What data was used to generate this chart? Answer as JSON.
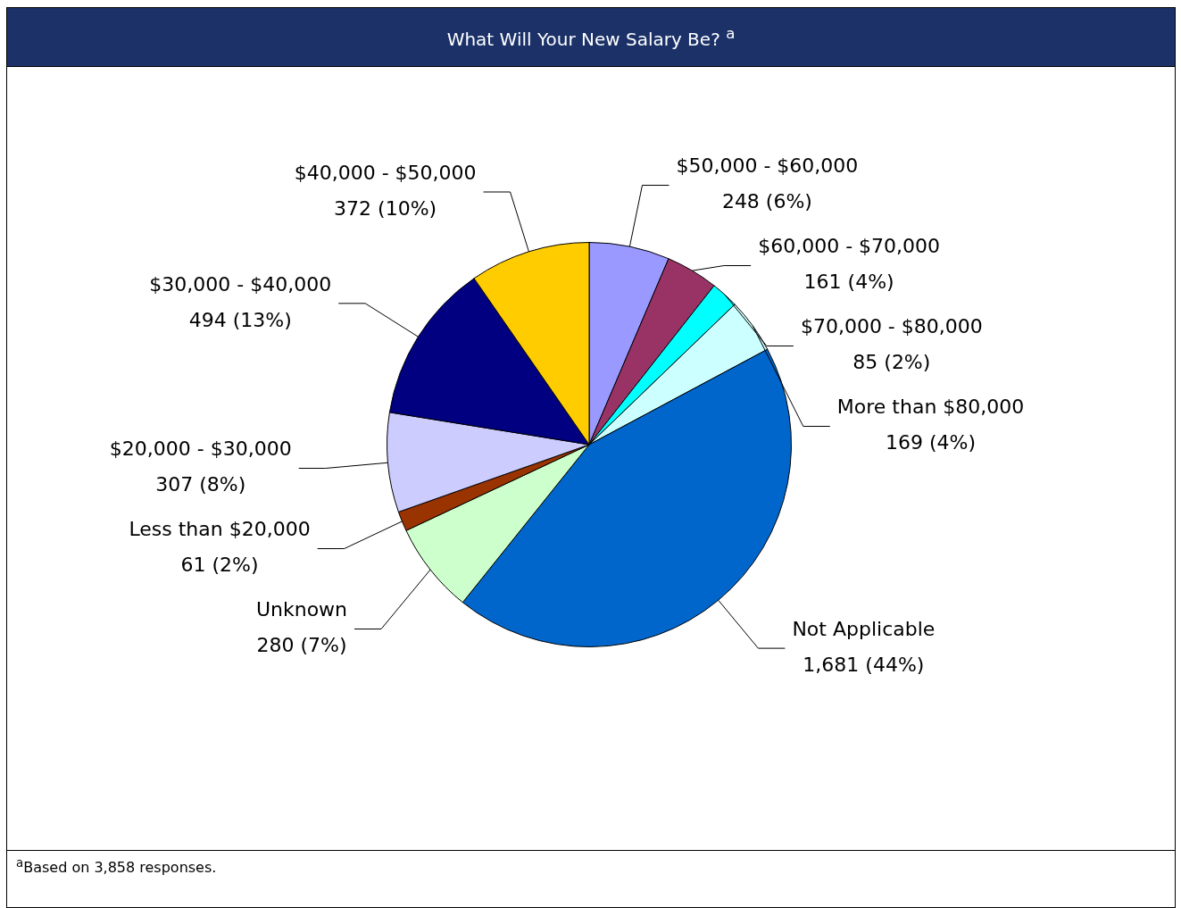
{
  "chart_data": {
    "type": "pie",
    "title": "What Will Your New Salary Be? $^{a}$",
    "categories": [
      "$50,000 - $60,000",
      "$60,000 - $70,000",
      "$70,000 - $80,000",
      "More than $80,000",
      "Not Applicable",
      "Unknown",
      "Less than $20,000",
      "$20,000 - $30,000",
      "$30,000 - $40,000",
      "$40,000 - $50,000"
    ],
    "values": [
      248,
      161,
      85,
      169,
      1681,
      280,
      61,
      307,
      494,
      372
    ],
    "value_labels": [
      "248 (6%)",
      "161 (4%)",
      "85 (2%)",
      "169 (4%)",
      "1,681 (44%)",
      "280 (7%)",
      "61 (2%)",
      "307 (8%)",
      "494 (13%)",
      "372 (10%)"
    ],
    "colors": [
      "#9999ff",
      "#993366",
      "#00ffff",
      "#ccffff",
      "#0066cc",
      "#ccffcc",
      "#993300",
      "#ccccff",
      "#000080",
      "#ffcc00"
    ],
    "legend": false,
    "annotations": [
      "$^{a}$Based on 3,858 responses."
    ]
  }
}
